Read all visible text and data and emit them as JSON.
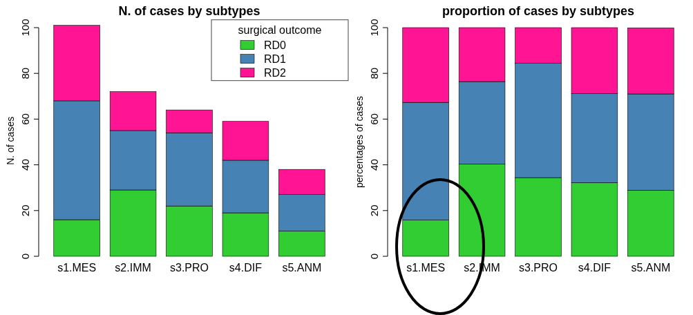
{
  "chart_data": [
    {
      "type": "bar",
      "title": "N. of cases by subtypes",
      "ylabel": "N. of cases",
      "stacked": true,
      "legend": "top right",
      "legend_title": "surgical outcome",
      "categories": [
        "s1.MES",
        "s2.IMM",
        "s3.PRO",
        "s4.DIF",
        "s5.ANM"
      ],
      "ylim": [
        0,
        101
      ],
      "yticks": [
        0,
        20,
        40,
        60,
        80,
        100
      ],
      "series": [
        {
          "name": "RD0",
          "color": "#32cd32",
          "values": [
            16,
            29,
            22,
            19,
            11
          ]
        },
        {
          "name": "RD1",
          "color": "#4682b4",
          "values": [
            52,
            26,
            32,
            23,
            16
          ]
        },
        {
          "name": "RD2",
          "color": "#ff1493",
          "values": [
            33,
            17,
            10,
            17,
            11
          ]
        }
      ]
    },
    {
      "type": "bar",
      "title": "proportion of cases by subtypes",
      "ylabel": "percentages of cases",
      "stacked": true,
      "categories": [
        "s1.MES",
        "s2.IMM",
        "s3.PRO",
        "s4.DIF",
        "s5.ANM"
      ],
      "ylim": [
        0,
        100
      ],
      "yticks": [
        0,
        20,
        40,
        60,
        80,
        100
      ],
      "series": [
        {
          "color": "#32cd32",
          "values": [
            15.8,
            40.3,
            34.4,
            32.2,
            28.9
          ]
        },
        {
          "color": "#4682b4",
          "values": [
            51.5,
            36.1,
            50,
            39,
            42.1
          ]
        },
        {
          "color": "#ff1493",
          "values": [
            32.7,
            23.6,
            15.6,
            28.8,
            28.9
          ]
        }
      ]
    }
  ]
}
